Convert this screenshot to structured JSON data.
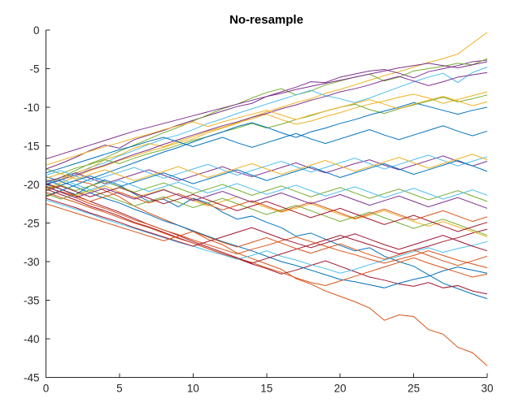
{
  "chart_data": {
    "type": "line",
    "title": "No-resample",
    "xlabel": "",
    "ylabel": "",
    "xlim": [
      0,
      30
    ],
    "ylim": [
      -45,
      0
    ],
    "xticks": [
      0,
      5,
      10,
      15,
      20,
      25,
      30
    ],
    "xtick_labels": [
      "0",
      "5",
      "10",
      "15",
      "20",
      "25",
      "30"
    ],
    "yticks": [
      0,
      -5,
      -10,
      -15,
      -20,
      -25,
      -30,
      -35,
      -40,
      -45
    ],
    "ytick_labels": [
      "0",
      "-5",
      "-10",
      "-15",
      "-20",
      "-25",
      "-30",
      "-35",
      "-40",
      "-45"
    ],
    "grid": false,
    "legend": "none",
    "colors": [
      "#0072BD",
      "#D95319",
      "#EDB120",
      "#7E2F8E",
      "#77AC30",
      "#4DBEEE",
      "#A2142F"
    ],
    "x": [
      0,
      1,
      2,
      3,
      4,
      5,
      6,
      7,
      8,
      9,
      10,
      11,
      12,
      13,
      14,
      15,
      16,
      17,
      18,
      19,
      20,
      21,
      22,
      23,
      24,
      25,
      26,
      27,
      28,
      29,
      30
    ],
    "series": [
      {
        "values": [
          -20,
          -20.6,
          -21.3,
          -20.2,
          -19.4,
          -20.1,
          -21.2,
          -22.2,
          -21.9,
          -22.9,
          -21.8,
          -22.4,
          -23.6,
          -24.5,
          -24.1,
          -24.9,
          -25.6,
          -26.7,
          -26.3,
          -27.1,
          -27.9,
          -28.6,
          -28.2,
          -29.3,
          -30,
          -30.6,
          -31.7,
          -32.8,
          -33.5,
          -34.2,
          -34.8
        ]
      },
      {
        "values": [
          -20.5,
          -20.1,
          -19.5,
          -19.9,
          -20.8,
          -21.6,
          -22.8,
          -23.7,
          -24.5,
          -25.3,
          -26.1,
          -27.1,
          -27.8,
          -28.9,
          -29.6,
          -30.3,
          -31,
          -32.2,
          -32.9,
          -33.8,
          -34.5,
          -35.2,
          -36,
          -37.6,
          -36.9,
          -37.1,
          -38.8,
          -39.4,
          -41.1,
          -41.8,
          -43.5
        ]
      },
      {
        "values": [
          -20.5,
          -19.8,
          -19,
          -18.2,
          -17.6,
          -16.9,
          -16.3,
          -15.7,
          -15.2,
          -14.6,
          -14.1,
          -13.3,
          -12.7,
          -12.1,
          -11.3,
          -10.6,
          -10,
          -9.4,
          -8.9,
          -8.2,
          -7.7,
          -7.1,
          -6.5,
          -5.9,
          -5.4,
          -4.8,
          -4.2,
          -3.7,
          -3.1,
          -1.7,
          -0.3
        ]
      },
      {
        "values": [
          -18,
          -17.3,
          -16.5,
          -15.6,
          -14.9,
          -15.3,
          -14.2,
          -13.6,
          -13,
          -12.3,
          -11.7,
          -11.1,
          -10.5,
          -9.9,
          -9.5,
          -8.6,
          -8,
          -7.4,
          -6.7,
          -6.8,
          -6.1,
          -5.7,
          -5.3,
          -5.1,
          -5.6,
          -6.2,
          -5.4,
          -5,
          -4.6,
          -4.1,
          -3.9
        ]
      },
      {
        "values": [
          -20,
          -19.1,
          -18.2,
          -17.3,
          -16.6,
          -15.7,
          -14.9,
          -14.1,
          -13.3,
          -12.6,
          -11.8,
          -11,
          -10.2,
          -9.6,
          -8.8,
          -8.1,
          -7.6,
          -8.4,
          -7.9,
          -7.1,
          -6.6,
          -6.1,
          -5.7,
          -6.6,
          -6.1,
          -5.3,
          -5,
          -4.7,
          -4.3,
          -4.5,
          -3.7
        ]
      },
      {
        "values": [
          -20,
          -19.5,
          -18.6,
          -17.8,
          -17.2,
          -16.3,
          -15.6,
          -14.8,
          -14.1,
          -13.6,
          -12.9,
          -12.1,
          -11.5,
          -10.8,
          -10.2,
          -9.6,
          -9,
          -8.4,
          -7.8,
          -8.5,
          -8.9,
          -9.4,
          -8.8,
          -8.1,
          -7.4,
          -6.7,
          -6.1,
          -5.6,
          -6.8,
          -5.5,
          -4.8
        ]
      },
      {
        "values": [
          -20.6,
          -21.3,
          -22,
          -22.8,
          -23.4,
          -24.1,
          -24.9,
          -25.5,
          -26.2,
          -26.9,
          -27.6,
          -28.3,
          -29,
          -29.6,
          -30.3,
          -30.9,
          -31.6,
          -31.1,
          -30.5,
          -29.9,
          -30.6,
          -31.3,
          -32,
          -32.4,
          -32.9,
          -33.2,
          -32.7,
          -33.4,
          -33.1,
          -33.8,
          -34.2
        ]
      },
      {
        "values": [
          -19,
          -19.6,
          -20.3,
          -21.1,
          -21.8,
          -22.4,
          -23.2,
          -23.9,
          -24.7,
          -25.3,
          -26,
          -26.7,
          -27.4,
          -28,
          -28.6,
          -29.3,
          -30,
          -30.5,
          -31.1,
          -31.7,
          -32.3,
          -32.6,
          -33,
          -33.4,
          -32.8,
          -32.3,
          -31.9,
          -31.2,
          -30.7,
          -31.1,
          -31.5
        ]
      },
      {
        "values": [
          -21,
          -21.7,
          -22.3,
          -23,
          -23.6,
          -24.3,
          -25,
          -25.6,
          -26.3,
          -27,
          -27.6,
          -28.3,
          -29,
          -29.6,
          -30.1,
          -30.8,
          -31.4,
          -32.1,
          -32.7,
          -33.1,
          -32.5,
          -31.9,
          -31.3,
          -30.7,
          -30.1,
          -29.5,
          -30.2,
          -30.8,
          -31.4,
          -32,
          -31.6
        ]
      },
      {
        "values": [
          -19.5,
          -19.3,
          -18.5,
          -17.9,
          -16.8,
          -16.2,
          -15.3,
          -14.7,
          -15.1,
          -14.4,
          -13.8,
          -13.1,
          -12.6,
          -12,
          -11.5,
          -10.9,
          -11.6,
          -12.2,
          -11.8,
          -11.2,
          -10.7,
          -10.1,
          -9.6,
          -9.2,
          -8.7,
          -8.3,
          -8.8,
          -9.5,
          -9,
          -8.5,
          -8
        ]
      },
      {
        "values": [
          -20,
          -19.4,
          -18.8,
          -18.1,
          -17.5,
          -16.8,
          -16.1,
          -15.5,
          -14.8,
          -14.2,
          -13.6,
          -13,
          -12.4,
          -11.9,
          -11.3,
          -10.8,
          -10.2,
          -9.7,
          -9.1,
          -8.6,
          -8,
          -7.6,
          -7.1,
          -6.5,
          -6,
          -6.6,
          -7.2,
          -6.7,
          -6.1,
          -5.8,
          -5.5
        ]
      },
      {
        "values": [
          -18,
          -18.6,
          -17.9,
          -17.4,
          -16.8,
          -17.3,
          -16.6,
          -16,
          -15.5,
          -14.9,
          -14.3,
          -13.8,
          -13.2,
          -12.7,
          -12.1,
          -12.7,
          -12.2,
          -11.6,
          -11.1,
          -10.5,
          -10,
          -9.6,
          -10.3,
          -10.8,
          -10.2,
          -9.7,
          -9.2,
          -8.7,
          -9.3,
          -8.9,
          -8.4
        ]
      },
      {
        "values": [
          -22,
          -22.6,
          -23.2,
          -23.8,
          -24.5,
          -25.1,
          -25.7,
          -26.3,
          -26.9,
          -27.5,
          -28,
          -28.6,
          -29.1,
          -29.7,
          -29.2,
          -28.6,
          -29.3,
          -29.8,
          -30.4,
          -30.9,
          -31.5,
          -31,
          -30.4,
          -29.8,
          -29.3,
          -28.7,
          -28.2,
          -28.8,
          -28.3,
          -27.9,
          -27.4
        ]
      },
      {
        "values": [
          -19.8,
          -20.6,
          -21.4,
          -22.2,
          -22.9,
          -23.6,
          -24.4,
          -25.2,
          -25.9,
          -26.6,
          -27.4,
          -28.1,
          -28.8,
          -29.5,
          -30.2,
          -29.6,
          -29,
          -28.4,
          -27.8,
          -27.2,
          -26.6,
          -27.2,
          -27.8,
          -28.4,
          -29,
          -28.5,
          -28,
          -27.4,
          -26.9,
          -26.3,
          -25.8
        ]
      },
      {
        "values": [
          -21.5,
          -20.8,
          -20.1,
          -19.3,
          -18.6,
          -17.9,
          -17.2,
          -16.5,
          -15.8,
          -15.2,
          -14.5,
          -13.8,
          -13.2,
          -12.5,
          -12,
          -12.6,
          -13.3,
          -13.9,
          -13.2,
          -12.7,
          -12.1,
          -11.6,
          -11,
          -10.5,
          -10,
          -9.4,
          -9.9,
          -10.4,
          -10.9,
          -10.4,
          -10
        ]
      },
      {
        "values": [
          -20.2,
          -21,
          -21.7,
          -22.5,
          -23.1,
          -23.8,
          -24.6,
          -25.2,
          -25.9,
          -26.5,
          -27.2,
          -27.8,
          -28.4,
          -29,
          -28.4,
          -27.9,
          -27.3,
          -26.8,
          -27.4,
          -28,
          -28.6,
          -29.1,
          -29.7,
          -30.2,
          -29.7,
          -29.2,
          -28.6,
          -29.2,
          -29.8,
          -30.3,
          -30.8
        ]
      },
      {
        "values": [
          -20.4,
          -20.9,
          -21.5,
          -20.9,
          -20.2,
          -21,
          -21.7,
          -21.2,
          -20.6,
          -21.4,
          -22.1,
          -22.8,
          -22.2,
          -21.6,
          -22.3,
          -23,
          -23.6,
          -23.1,
          -22.5,
          -23.2,
          -23.9,
          -24.5,
          -24,
          -23.4,
          -24.1,
          -24.8,
          -25.4,
          -24.8,
          -25.5,
          -26.1,
          -26.8
        ]
      },
      {
        "values": [
          -19.7,
          -19.1,
          -18.5,
          -19.2,
          -19.9,
          -19.3,
          -18.7,
          -18.1,
          -18.8,
          -19.5,
          -18.9,
          -18.3,
          -17.7,
          -18.4,
          -19,
          -18.4,
          -17.8,
          -17.2,
          -17.9,
          -18.5,
          -17.9,
          -17.3,
          -16.8,
          -17.5,
          -18.1,
          -17.5,
          -16.9,
          -16.3,
          -17,
          -17.6,
          -17
        ]
      },
      {
        "values": [
          -21.2,
          -21.9,
          -21.3,
          -20.7,
          -21.4,
          -22.1,
          -22.8,
          -22.2,
          -21.6,
          -22.3,
          -23,
          -22.4,
          -21.8,
          -22.5,
          -23.2,
          -23.9,
          -23.3,
          -22.7,
          -23.4,
          -24.1,
          -24.8,
          -24.2,
          -23.6,
          -24.3,
          -25,
          -25.7,
          -25.1,
          -24.5,
          -25.2,
          -25.9,
          -26.6
        ]
      },
      {
        "values": [
          -18.8,
          -18.2,
          -18.9,
          -19.6,
          -19,
          -18.4,
          -17.8,
          -18.5,
          -19.2,
          -18.6,
          -18,
          -17.4,
          -18.1,
          -18.8,
          -18.2,
          -17.6,
          -17,
          -17.7,
          -18.4,
          -17.8,
          -17.2,
          -16.6,
          -17.3,
          -18,
          -17.4,
          -16.8,
          -16.2,
          -16.9,
          -17.6,
          -17,
          -16.4
        ]
      },
      {
        "values": [
          -20.8,
          -20.2,
          -20.9,
          -21.6,
          -21,
          -20.4,
          -21.1,
          -21.8,
          -22.5,
          -21.9,
          -21.3,
          -22,
          -22.7,
          -23.4,
          -22.8,
          -22.2,
          -22.9,
          -23.6,
          -24.3,
          -23.7,
          -23.1,
          -23.8,
          -24.5,
          -25.2,
          -24.6,
          -24,
          -24.7,
          -25.4,
          -26.1,
          -25.5,
          -24.9
        ]
      },
      {
        "values": [
          -19.4,
          -20.1,
          -19.5,
          -18.9,
          -19.6,
          -20.3,
          -19.7,
          -19.1,
          -18.5,
          -19.2,
          -19.9,
          -19.3,
          -18.7,
          -18.1,
          -18.8,
          -19.5,
          -18.9,
          -18.3,
          -17.7,
          -18.4,
          -19.1,
          -18.5,
          -17.9,
          -17.3,
          -18,
          -18.7,
          -18.1,
          -17.5,
          -16.9,
          -17.6,
          -18.3
        ]
      },
      {
        "values": [
          -21.6,
          -20.9,
          -21.5,
          -22.2,
          -21.6,
          -21,
          -21.7,
          -22.4,
          -21.8,
          -21.2,
          -21.9,
          -22.6,
          -23.3,
          -22.7,
          -22.1,
          -22.8,
          -23.5,
          -22.9,
          -22.3,
          -23,
          -23.7,
          -24.4,
          -23.8,
          -23.2,
          -23.9,
          -24.6,
          -24,
          -23.4,
          -24.1,
          -24.8,
          -24.2
        ]
      },
      {
        "values": [
          -19.2,
          -18.6,
          -19.3,
          -18.7,
          -18.1,
          -18.8,
          -19.5,
          -18.9,
          -18.3,
          -17.7,
          -18.4,
          -19.1,
          -18.5,
          -17.9,
          -17.3,
          -18,
          -18.7,
          -18.1,
          -17.5,
          -16.9,
          -17.6,
          -18.3,
          -17.7,
          -17.1,
          -16.5,
          -17.2,
          -17.9,
          -17.3,
          -16.7,
          -16.1,
          -16.8
        ]
      },
      {
        "values": [
          -20.3,
          -21,
          -21.7,
          -21.1,
          -20.5,
          -21.2,
          -21.9,
          -21.3,
          -20.7,
          -21.4,
          -22.1,
          -21.5,
          -20.9,
          -21.6,
          -22.3,
          -21.7,
          -21.1,
          -21.8,
          -22.5,
          -21.9,
          -21.3,
          -22,
          -22.7,
          -22.1,
          -21.5,
          -22.2,
          -22.9,
          -22.3,
          -21.7,
          -22.4,
          -23.1
        ]
      },
      {
        "values": [
          -20.7,
          -20.1,
          -20.8,
          -20.2,
          -19.6,
          -20.3,
          -21,
          -20.4,
          -19.8,
          -20.5,
          -21.2,
          -20.6,
          -20,
          -20.7,
          -21.4,
          -20.8,
          -20.2,
          -20.9,
          -21.6,
          -21,
          -20.4,
          -21.1,
          -21.8,
          -21.2,
          -20.6,
          -21.3,
          -22,
          -21.4,
          -20.8,
          -21.5,
          -22.2
        ]
      },
      {
        "values": [
          -19.9,
          -19.3,
          -20,
          -20.7,
          -20.1,
          -19.5,
          -20.2,
          -20.9,
          -20.3,
          -19.7,
          -20.4,
          -21.1,
          -20.5,
          -19.9,
          -20.6,
          -21.3,
          -20.7,
          -20.1,
          -20.8,
          -21.5,
          -20.9,
          -20.3,
          -21,
          -21.7,
          -21.1,
          -20.5,
          -21.2,
          -21.9,
          -21.3,
          -20.7,
          -21.4
        ]
      },
      {
        "values": [
          -21.8,
          -22.4,
          -23,
          -23.7,
          -24.3,
          -24.9,
          -25.6,
          -26.2,
          -26.8,
          -27.4,
          -28,
          -27.4,
          -26.8,
          -26.2,
          -25.6,
          -26.3,
          -27,
          -27.6,
          -28.2,
          -27.6,
          -27,
          -26.4,
          -27.1,
          -27.8,
          -28.4,
          -27.8,
          -27.2,
          -26.6,
          -27.3,
          -28,
          -28.6
        ]
      },
      {
        "values": [
          -18.5,
          -17.9,
          -17.3,
          -16.7,
          -16.1,
          -15.5,
          -15,
          -14.4,
          -13.9,
          -14.5,
          -15.1,
          -14.5,
          -13.9,
          -14.6,
          -15.2,
          -14.6,
          -14,
          -13.4,
          -14.1,
          -14.7,
          -14.1,
          -13.5,
          -12.9,
          -13.6,
          -14.2,
          -13.6,
          -13,
          -12.4,
          -13.1,
          -13.7,
          -13.1
        ]
      },
      {
        "values": [
          -22.5,
          -23.1,
          -23.7,
          -24.3,
          -24.9,
          -25.5,
          -26.1,
          -26.7,
          -27.3,
          -26.7,
          -26.1,
          -26.8,
          -27.5,
          -28.1,
          -27.5,
          -26.9,
          -27.6,
          -28.3,
          -28.9,
          -28.3,
          -27.7,
          -28.4,
          -29.1,
          -29.7,
          -29.1,
          -28.5,
          -29.2,
          -29.9,
          -30.5,
          -29.9,
          -29.3
        ]
      },
      {
        "values": [
          -17.5,
          -16.9,
          -16.3,
          -15.7,
          -15.1,
          -14.6,
          -14,
          -13.5,
          -12.9,
          -12.4,
          -11.9,
          -12.5,
          -11.9,
          -11.4,
          -10.9,
          -10.4,
          -11,
          -11.6,
          -11,
          -10.5,
          -10,
          -9.5,
          -9,
          -9.6,
          -10.2,
          -9.6,
          -9.1,
          -8.6,
          -9.2,
          -9.8,
          -9.3
        ]
      },
      {
        "values": [
          -16.7,
          -16.1,
          -15.5,
          -14.9,
          -14.3,
          -13.7,
          -13.1,
          -12.6,
          -12.1,
          -11.6,
          -11.1,
          -10.6,
          -10.1,
          -9.6,
          -9.1,
          -8.6,
          -8.2,
          -7.7,
          -7.3,
          -6.9,
          -6.5,
          -6.1,
          -5.7,
          -5.3,
          -4.9,
          -4.6,
          -4.3,
          -4.6,
          -4.9,
          -4.5,
          -4.1
        ]
      }
    ]
  }
}
